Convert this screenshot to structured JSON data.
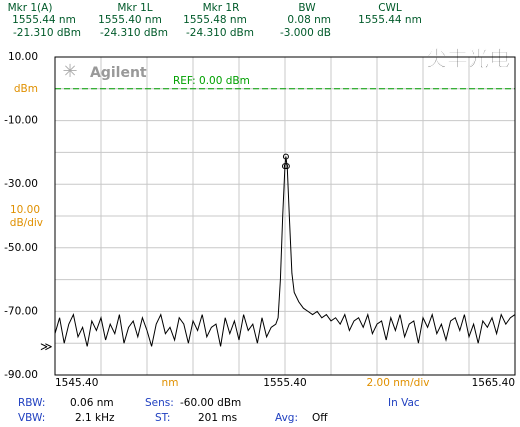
{
  "readout": [
    {
      "label": "Mkr 1(A)",
      "line1": "1555.44 nm",
      "line2": "-21.310 dBm"
    },
    {
      "label": "Mkr 1L",
      "line1": "1555.40 nm",
      "line2": "-24.310 dBm"
    },
    {
      "label": "Mkr 1R",
      "line1": "1555.48 nm",
      "line2": "-24.310 dBm"
    },
    {
      "label": "BW",
      "line1": "0.08 nm",
      "line2": "-3.000 dB"
    },
    {
      "label": "CWL",
      "line1": "1555.44 nm"
    }
  ],
  "logo": "Agilent",
  "watermark": "尖丰光电",
  "settings": [
    [
      {
        "label": "RBW:",
        "value": "0.06 nm"
      },
      {
        "label": "Sens:",
        "value": "-60.00 dBm"
      },
      {
        "label": "In Vac"
      }
    ],
    [
      {
        "label": "VBW:",
        "value": "2.1 kHz"
      },
      {
        "label": "ST:",
        "value": "201 ms"
      },
      {
        "label": "Avg:",
        "value": "Off"
      }
    ]
  ],
  "chart_data": {
    "type": "line",
    "color": "#000000",
    "ylim": [
      -90,
      10
    ],
    "yticks": [
      {
        "value": 10,
        "label": "10.00"
      },
      {
        "value": -10,
        "label": "-10.00"
      },
      {
        "value": -30,
        "label": "-30.00"
      },
      {
        "value": -50,
        "label": "-50.00"
      },
      {
        "value": -70,
        "label": "-70.00"
      },
      {
        "value": -90,
        "label": "-90.00"
      }
    ],
    "minor_yticks": [
      0,
      -20,
      -40,
      -60,
      -80
    ],
    "xlim": [
      1545.4,
      1565.4
    ],
    "xticks": [
      {
        "value": 1545.4,
        "label": "1545.40"
      },
      {
        "value": 1555.4,
        "label": "1555.40"
      },
      {
        "value": 1565.4,
        "label": "1565.40"
      }
    ],
    "minor_xticks": [
      1547.4,
      1549.4,
      1551.4,
      1553.4,
      1557.4,
      1559.4,
      1561.4,
      1563.4
    ],
    "grid": true,
    "y_unit": "dBm",
    "y_scale": [
      "10.00",
      "dB/div"
    ],
    "x_unit": "nm",
    "x_scale": "2.00 nm/div",
    "ref_level": 0,
    "ref_label": "REF: 0.00 dBm",
    "ref_color": "#00a000",
    "level_indicator": "≫",
    "markers": [
      {
        "x": 1555.44,
        "y": -21.31
      },
      {
        "x": 1555.4,
        "y": -24.31
      },
      {
        "x": 1555.48,
        "y": -24.31
      }
    ],
    "x": [
      1545.4,
      1545.6,
      1545.8,
      1546.0,
      1546.2,
      1546.4,
      1546.6,
      1546.8,
      1547.0,
      1547.2,
      1547.4,
      1547.6,
      1547.8,
      1548.0,
      1548.2,
      1548.4,
      1548.6,
      1548.8,
      1549.0,
      1549.2,
      1549.4,
      1549.6,
      1549.8,
      1550.0,
      1550.2,
      1550.4,
      1550.6,
      1550.8,
      1551.0,
      1551.2,
      1551.4,
      1551.6,
      1551.8,
      1552.0,
      1552.2,
      1552.4,
      1552.6,
      1552.8,
      1553.0,
      1553.2,
      1553.4,
      1553.6,
      1553.8,
      1554.0,
      1554.2,
      1554.4,
      1554.6,
      1554.8,
      1555.0,
      1555.1,
      1555.2,
      1555.3,
      1555.4,
      1555.44,
      1555.5,
      1555.6,
      1555.7,
      1555.8,
      1556.0,
      1556.2,
      1556.4,
      1556.6,
      1556.8,
      1557.0,
      1557.2,
      1557.4,
      1557.6,
      1557.8,
      1558.0,
      1558.2,
      1558.4,
      1558.6,
      1558.8,
      1559.0,
      1559.2,
      1559.4,
      1559.6,
      1559.8,
      1560.0,
      1560.2,
      1560.4,
      1560.6,
      1560.8,
      1561.0,
      1561.2,
      1561.4,
      1561.6,
      1561.8,
      1562.0,
      1562.2,
      1562.4,
      1562.6,
      1562.8,
      1563.0,
      1563.2,
      1563.4,
      1563.6,
      1563.8,
      1564.0,
      1564.2,
      1564.4,
      1564.6,
      1564.8,
      1565.0,
      1565.2,
      1565.4
    ],
    "values": [
      -77,
      -72,
      -80,
      -74,
      -71,
      -78,
      -75,
      -81,
      -73,
      -76,
      -72,
      -79,
      -74,
      -77,
      -71,
      -80,
      -75,
      -73,
      -78,
      -72,
      -76,
      -81,
      -74,
      -71,
      -77,
      -75,
      -79,
      -72,
      -74,
      -80,
      -73,
      -76,
      -71,
      -78,
      -75,
      -74,
      -81,
      -72,
      -77,
      -73,
      -79,
      -71,
      -76,
      -74,
      -80,
      -72,
      -78,
      -75,
      -74,
      -72,
      -60,
      -40,
      -24,
      -21.3,
      -25,
      -42,
      -58,
      -64,
      -67,
      -69,
      -70,
      -71,
      -70,
      -72,
      -71,
      -73,
      -72,
      -74,
      -71,
      -76,
      -73,
      -72,
      -75,
      -71,
      -77,
      -74,
      -73,
      -79,
      -72,
      -76,
      -71,
      -78,
      -74,
      -73,
      -80,
      -72,
      -75,
      -71,
      -77,
      -74,
      -79,
      -73,
      -72,
      -76,
      -71,
      -78,
      -74,
      -80,
      -73,
      -75,
      -72,
      -77,
      -71,
      -74,
      -72,
      -71
    ]
  }
}
